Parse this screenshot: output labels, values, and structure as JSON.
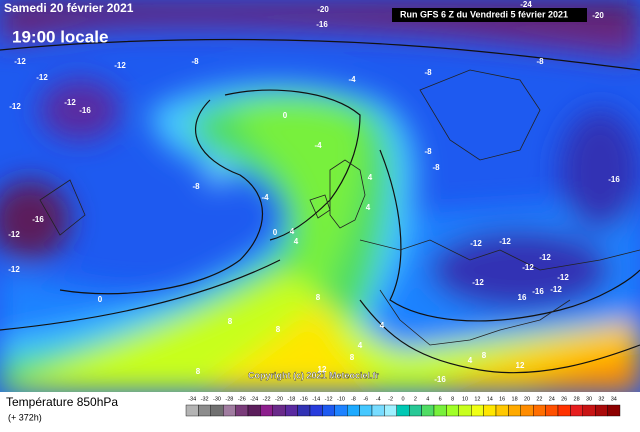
{
  "header": {
    "date": "Samedi 20 février 2021",
    "time": "19:00 locale",
    "run": "Run GFS 6 Z du Vendredi 5 février 2021"
  },
  "copyright": "Copyright (c) 2021 Meteociel.fr",
  "legend": {
    "title": "Température 850hPa",
    "subtitle": "(+ 372h)",
    "scale": [
      {
        "value": -34,
        "color": "#b4b4b4"
      },
      {
        "value": -32,
        "color": "#8c8c8c"
      },
      {
        "value": -30,
        "color": "#707070"
      },
      {
        "value": -28,
        "color": "#a07ca0"
      },
      {
        "value": -26,
        "color": "#7a3c7a"
      },
      {
        "value": -24,
        "color": "#5c1e5c"
      },
      {
        "value": -22,
        "color": "#8c1e8c"
      },
      {
        "value": -20,
        "color": "#6a2a8a"
      },
      {
        "value": -18,
        "color": "#5a2aa0"
      },
      {
        "value": -16,
        "color": "#3232b4"
      },
      {
        "value": -14,
        "color": "#283cdc"
      },
      {
        "value": -12,
        "color": "#1e5af0"
      },
      {
        "value": -10,
        "color": "#1e82ff"
      },
      {
        "value": -8,
        "color": "#1eaaff"
      },
      {
        "value": -6,
        "color": "#46c8ff"
      },
      {
        "value": -4,
        "color": "#78dcff"
      },
      {
        "value": -2,
        "color": "#a0f0ff"
      },
      {
        "value": 0,
        "color": "#00c8b4"
      },
      {
        "value": 2,
        "color": "#28c896"
      },
      {
        "value": 4,
        "color": "#50dc64"
      },
      {
        "value": 6,
        "color": "#78f03c"
      },
      {
        "value": 8,
        "color": "#a0ff28"
      },
      {
        "value": 10,
        "color": "#c8ff1e"
      },
      {
        "value": 12,
        "color": "#f0ff14"
      },
      {
        "value": 14,
        "color": "#ffe600"
      },
      {
        "value": 16,
        "color": "#ffc800"
      },
      {
        "value": 18,
        "color": "#ffaa00"
      },
      {
        "value": 20,
        "color": "#ff8c00"
      },
      {
        "value": 22,
        "color": "#ff6e00"
      },
      {
        "value": 24,
        "color": "#ff5000"
      },
      {
        "value": 26,
        "color": "#ff3200"
      },
      {
        "value": 28,
        "color": "#e61e1e"
      },
      {
        "value": 30,
        "color": "#c81414"
      },
      {
        "value": 32,
        "color": "#aa0a0a"
      },
      {
        "value": 34,
        "color": "#8c0000"
      }
    ]
  },
  "map_labels": [
    "-24",
    "-20",
    "-16",
    "-20",
    "-12",
    "-12",
    "-8",
    "-12",
    "-16",
    "-12",
    "-12",
    "-8",
    "-8",
    "-4",
    "0",
    "-4",
    "-8",
    "-8",
    "-4",
    "4",
    "4",
    "0",
    "4",
    "4",
    "-8",
    "-16",
    "-16",
    "-12",
    "-12",
    "-12",
    "-12",
    "-12",
    "-12",
    "-12",
    "-12",
    "16",
    "-16",
    "-12",
    "0",
    "8",
    "8",
    "8",
    "4",
    "4",
    "8",
    "8",
    "12",
    "4",
    "8",
    "12",
    "-16"
  ]
}
